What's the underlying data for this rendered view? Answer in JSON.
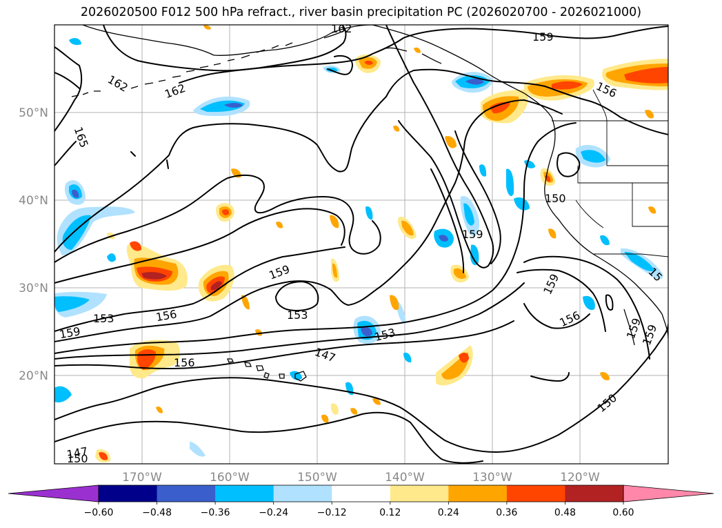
{
  "title": "2026020500 F012 500 hPa refract., river basin precipitation PC (2026020700 - 2026021000)",
  "lat_labels": [
    "50°N",
    "40°N",
    "30°N",
    "20°N"
  ],
  "lon_labels": [
    "170°W",
    "160°W",
    "150°W",
    "140°W",
    "130°W",
    "120°W"
  ],
  "contour_labels": [
    {
      "text": "162"
    },
    {
      "text": "159"
    },
    {
      "text": "162"
    },
    {
      "text": "162"
    },
    {
      "text": "165"
    },
    {
      "text": "156"
    },
    {
      "text": "150"
    },
    {
      "text": "159"
    },
    {
      "text": "159"
    },
    {
      "text": "159"
    },
    {
      "text": "153"
    },
    {
      "text": "153"
    },
    {
      "text": "153"
    },
    {
      "text": "156"
    },
    {
      "text": "159"
    },
    {
      "text": "156"
    },
    {
      "text": "147"
    },
    {
      "text": "159"
    },
    {
      "text": "156"
    },
    {
      "text": "159"
    },
    {
      "text": "150"
    },
    {
      "text": "147"
    },
    {
      "text": "150"
    },
    {
      "text": "15"
    }
  ],
  "colorbar": {
    "ticks": [
      "−0.60",
      "−0.48",
      "−0.36",
      "−0.24",
      "−0.12",
      "0.12",
      "0.24",
      "0.36",
      "0.48",
      "0.60"
    ],
    "colors": [
      "#9b30d0",
      "#00008b",
      "#3a5fcd",
      "#00bfff",
      "#b0e2ff",
      "#ffffff",
      "#ffe98a",
      "#ffa500",
      "#ff4500",
      "#b22222",
      "#ff88aa"
    ]
  }
}
